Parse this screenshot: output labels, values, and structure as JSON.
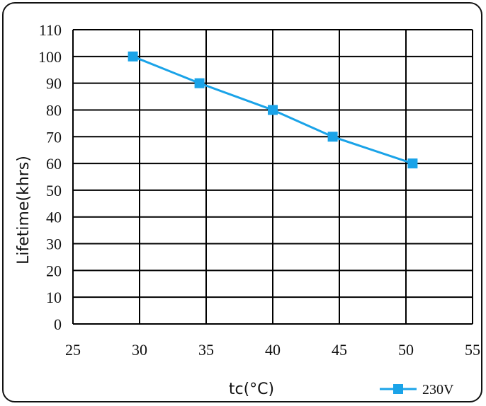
{
  "chart_data": {
    "type": "line",
    "xlabel": "tc(°C)",
    "ylabel": "Lifetime(khrs)",
    "xlim": [
      25,
      55
    ],
    "ylim": [
      0,
      110
    ],
    "x_ticks": [
      25,
      30,
      35,
      40,
      45,
      50,
      55
    ],
    "y_ticks": [
      0,
      10,
      20,
      30,
      40,
      50,
      60,
      70,
      80,
      90,
      100,
      110
    ],
    "grid": true,
    "legend_position": "bottom-right",
    "series": [
      {
        "name": "230V",
        "color": "#1aa3e8",
        "marker": "square",
        "x": [
          29.5,
          34.5,
          40,
          44.5,
          50.5
        ],
        "y": [
          100,
          90,
          80,
          70,
          60
        ]
      }
    ]
  }
}
